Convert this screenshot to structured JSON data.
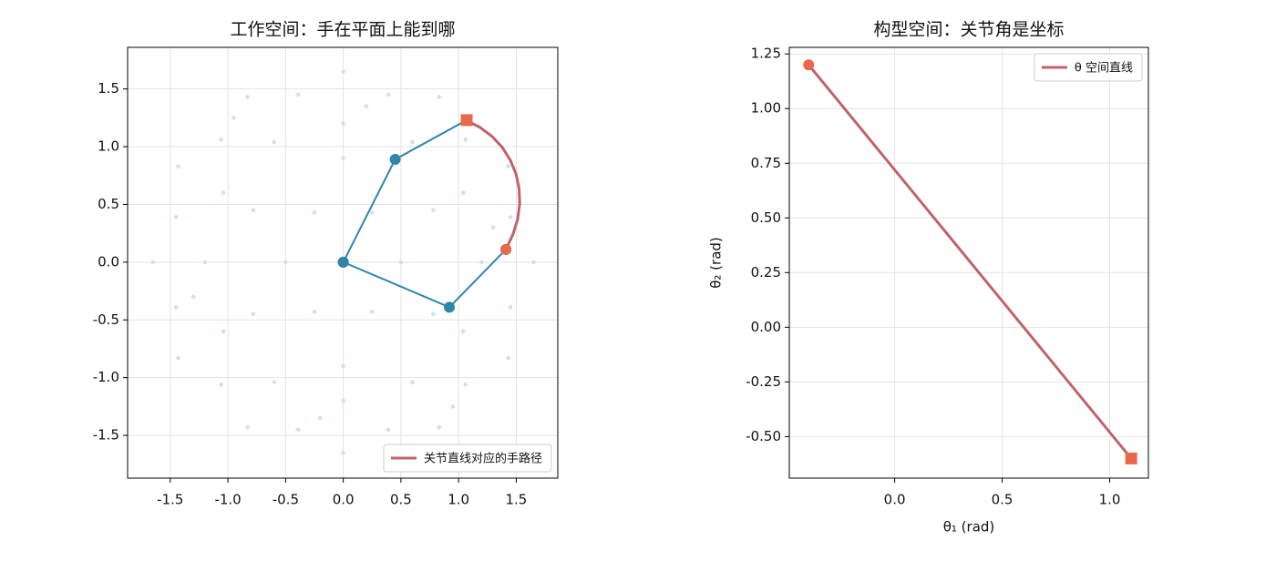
{
  "chart_data": [
    {
      "type": "scatter",
      "title": "工作空间：手在平面上能到哪",
      "xlim": [
        -1.87,
        1.86
      ],
      "ylim": [
        -1.87,
        1.86
      ],
      "xticks": [
        -1.5,
        {
          "value": -1.0,
          "label": "-1.0"
        },
        -0.5,
        {
          "value": 0.0,
          "label": "0.0"
        },
        0.5,
        {
          "value": 1.0,
          "label": "1.0"
        },
        1.5
      ],
      "yticks": [
        -1.5,
        {
          "value": -1.0,
          "label": "-1.0"
        },
        -0.5,
        {
          "value": 0.0,
          "label": "0.0"
        },
        0.5,
        {
          "value": 1.0,
          "label": "1.0"
        },
        1.5
      ],
      "grid": true,
      "legend": "lower right",
      "series": [
        {
          "type": "scatter",
          "marker": "dot",
          "color": "#c9e3f3",
          "x": [
            0.5,
            0.25,
            -0.25,
            -0.5,
            -0.25,
            0.25,
            0.78,
            0,
            -0.78,
            -0.78,
            0,
            0.78,
            1.2,
            1.04,
            0.6,
            0,
            -0.6,
            -1.04,
            -1.2,
            -1.04,
            -0.6,
            0,
            0.6,
            1.04,
            1.45,
            1.06,
            0.39,
            -0.39,
            -1.06,
            -1.45,
            -1.45,
            -1.06,
            -0.39,
            0.39,
            1.06,
            1.45,
            1.65,
            1.43,
            0.83,
            0,
            -0.83,
            -1.43,
            -1.65,
            -1.43,
            -0.83,
            0,
            0.83,
            1.43,
            1.3,
            -1.3,
            0.2,
            -0.2,
            0.95,
            -0.95
          ],
          "y": [
            0,
            0.43,
            0.43,
            0,
            -0.43,
            -0.43,
            0.45,
            0.9,
            0.45,
            -0.45,
            -0.9,
            -0.45,
            0,
            0.6,
            1.04,
            1.2,
            1.04,
            0.6,
            0,
            -0.6,
            -1.04,
            -1.2,
            -1.04,
            -0.6,
            0.39,
            1.06,
            1.45,
            1.45,
            1.06,
            0.39,
            -0.39,
            -1.06,
            -1.45,
            -1.45,
            -1.06,
            -0.39,
            0,
            0.83,
            1.43,
            1.65,
            1.43,
            0.83,
            0,
            -0.83,
            -1.43,
            -1.65,
            -1.43,
            -0.83,
            0.3,
            -0.3,
            1.35,
            -1.35,
            -1.25,
            1.25
          ]
        },
        {
          "type": "line",
          "marker": "o",
          "color": "#2e86ab",
          "x": [
            0,
            0.92,
            1.41
          ],
          "y": [
            0,
            -0.39,
            0.11
          ]
        },
        {
          "type": "line",
          "marker": "o",
          "color": "#2e86ab",
          "x": [
            0,
            0.45,
            1.07
          ],
          "y": [
            0,
            0.89,
            1.23
          ]
        },
        {
          "type": "line",
          "name": "关节直线对应的手路径",
          "color": "#c0626a",
          "x": [
            1.411,
            1.471,
            1.512,
            1.53,
            1.524,
            1.497,
            1.447,
            1.378,
            1.29,
            1.186,
            1.068
          ],
          "y": [
            0.112,
            0.24,
            0.372,
            0.506,
            0.639,
            0.767,
            0.886,
            0.995,
            1.089,
            1.167,
            1.227
          ]
        },
        {
          "type": "scatter",
          "marker": "o",
          "color": "#e8684a",
          "x": [
            1.41
          ],
          "y": [
            0.11
          ]
        },
        {
          "type": "scatter",
          "marker": "s",
          "color": "#e8684a",
          "x": [
            1.07
          ],
          "y": [
            1.23
          ]
        }
      ]
    },
    {
      "type": "line",
      "title": "构型空间：关节角是坐标",
      "xlabel": "θ₁ (rad)",
      "ylabel": "θ₂ (rad)",
      "xlim": [
        -0.49,
        1.18
      ],
      "ylim": [
        -0.69,
        1.28
      ],
      "xticks": [
        {
          "value": 0.0,
          "label": "0.0"
        },
        0.5,
        {
          "value": 1.0,
          "label": "1.0"
        }
      ],
      "yticks": [
        {
          "value": -0.5,
          "label": "-0.50"
        },
        -0.25,
        {
          "value": 0.0,
          "label": "0.00"
        },
        0.25,
        {
          "value": 0.5,
          "label": "0.50"
        },
        0.75,
        {
          "value": 1.0,
          "label": "1.00"
        },
        1.25
      ],
      "grid": true,
      "legend": "upper right",
      "series": [
        {
          "type": "line",
          "name": "θ 空间直线",
          "color": "#c0626a",
          "x": [
            -0.4,
            1.1
          ],
          "y": [
            1.2,
            -0.6
          ]
        },
        {
          "type": "scatter",
          "marker": "o",
          "color": "#e8684a",
          "x": [
            -0.4
          ],
          "y": [
            1.2
          ]
        },
        {
          "type": "scatter",
          "marker": "s",
          "color": "#e8684a",
          "x": [
            1.1
          ],
          "y": [
            -0.6
          ]
        }
      ]
    }
  ]
}
